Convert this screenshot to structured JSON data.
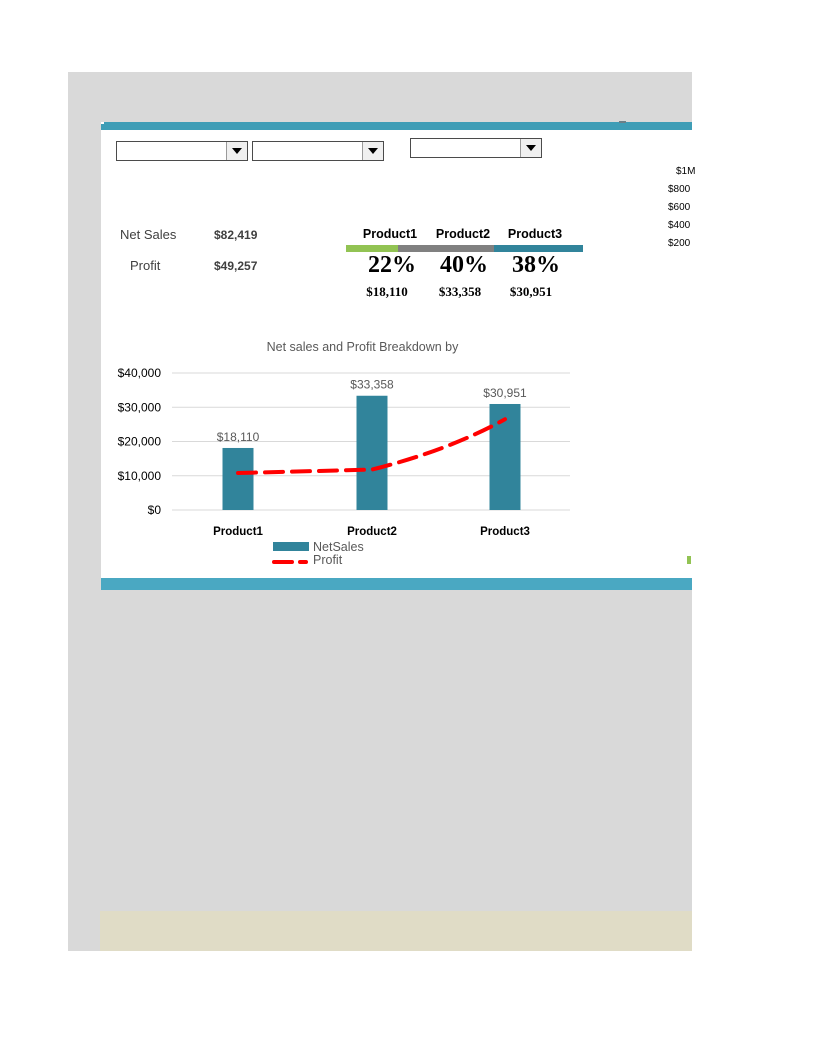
{
  "dropdowns": [
    {
      "value": ""
    },
    {
      "value": ""
    },
    {
      "value": ""
    }
  ],
  "kpis": {
    "net_sales_label": "Net Sales",
    "net_sales_value": "$82,419",
    "profit_label": "Profit",
    "profit_value": "$49,257"
  },
  "products": [
    {
      "name": "Product1",
      "share": "22%",
      "amount": "$18,110",
      "color": "#92c353"
    },
    {
      "name": "Product2",
      "share": "40%",
      "amount": "$33,358",
      "color": "#808080"
    },
    {
      "name": "Product3",
      "share": "38%",
      "amount": "$30,951",
      "color": "#31849b"
    }
  ],
  "side_axis": [
    "$1M",
    "$800",
    "$600",
    "$400",
    "$200"
  ],
  "colors": {
    "accent": "#3e9db6",
    "bar": "#31849b",
    "profit_line": "#ff0000",
    "band": "#e0dcc6"
  },
  "chart_data": {
    "type": "bar",
    "title": "Net sales and Profit Breakdown by",
    "categories": [
      "Product1",
      "Product2",
      "Product3"
    ],
    "series": [
      {
        "name": "NetSales",
        "type": "bar",
        "values": [
          18110,
          33358,
          30951
        ],
        "labels": [
          "$18,110",
          "$33,358",
          "$30,951"
        ]
      },
      {
        "name": "Profit",
        "type": "line",
        "values": [
          10800,
          11800,
          26500
        ]
      }
    ],
    "ylim": [
      0,
      40000
    ],
    "yticks": [
      0,
      10000,
      20000,
      30000,
      40000
    ],
    "ytick_labels": [
      "$0",
      "$10,000",
      "$20,000",
      "$30,000",
      "$40,000"
    ],
    "grid": true,
    "legend": "bottom-left"
  }
}
